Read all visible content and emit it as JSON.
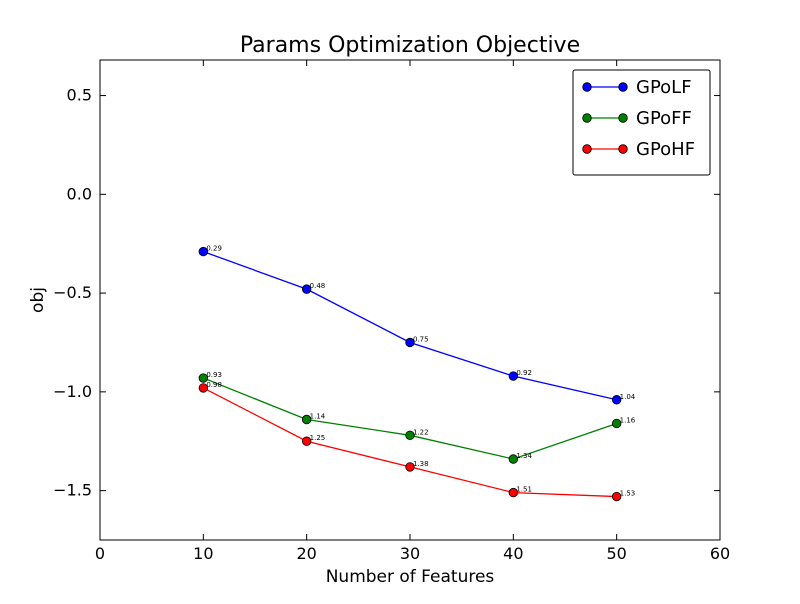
{
  "chart_data": {
    "type": "line",
    "title": "Params Optimization Objective",
    "xlabel": "Number of Features",
    "ylabel": "obj",
    "xlim": [
      0,
      60
    ],
    "ylim": [
      -1.75,
      0.68
    ],
    "x_ticks": [
      0,
      10,
      20,
      30,
      40,
      50,
      60
    ],
    "x_tick_labels": [
      "0",
      "10",
      "20",
      "30",
      "40",
      "50",
      "60"
    ],
    "y_ticks": [
      0.5,
      0.0,
      -0.5,
      -1.0,
      -1.5
    ],
    "y_tick_labels": [
      "0.5",
      "0.0",
      "−0.5",
      "−1.0",
      "−1.5"
    ],
    "grid": false,
    "legend_position": "top-right",
    "x": [
      10,
      20,
      30,
      40,
      50
    ],
    "series": [
      {
        "name": "GPoLF",
        "color": "#0000ff",
        "values": [
          -0.29,
          -0.48,
          -0.75,
          -0.92,
          -1.04
        ],
        "labels": [
          "0.29",
          "0.48",
          "0.75",
          "0.92",
          "1.04"
        ]
      },
      {
        "name": "GPoFF",
        "color": "#008000",
        "values": [
          -0.93,
          -1.14,
          -1.22,
          -1.34,
          -1.16
        ],
        "labels": [
          "0.93",
          "1.14",
          "1.22",
          "1.34",
          "1.16"
        ]
      },
      {
        "name": "GPoHF",
        "color": "#ff0000",
        "values": [
          -0.98,
          -1.25,
          -1.38,
          -1.51,
          -1.53
        ],
        "labels": [
          "0.98",
          "1.25",
          "1.38",
          "1.51",
          "1.53"
        ]
      }
    ]
  }
}
